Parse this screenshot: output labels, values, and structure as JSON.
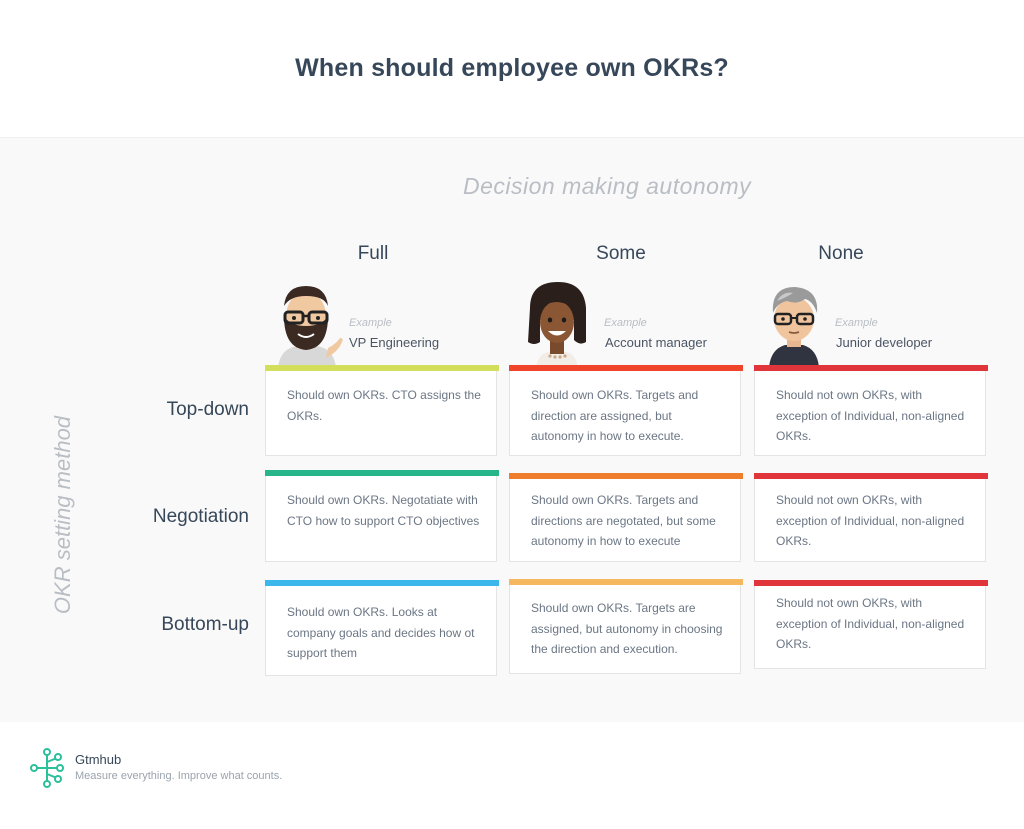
{
  "title": "When should employee own OKRs?",
  "axis_x_label": "Decision making autonomy",
  "axis_y_label": "OKR setting method",
  "columns": [
    {
      "label": "Full",
      "example_label": "Example",
      "example_role": "VP Engineering"
    },
    {
      "label": "Some",
      "example_label": "Example",
      "example_role": "Account manager"
    },
    {
      "label": "None",
      "example_label": "Example",
      "example_role": "Junior developer"
    }
  ],
  "rows": [
    {
      "label": "Top-down"
    },
    {
      "label": "Negotiation"
    },
    {
      "label": "Bottom-up"
    }
  ],
  "cells": [
    [
      {
        "text": "Should own OKRs. CTO assigns the OKRs.",
        "color": "#d3df5a"
      },
      {
        "text": "Should own OKRs. Targets and direction are assigned, but autonomy in how to execute.",
        "color": "#f0452a"
      },
      {
        "text": "Should not own OKRs, with exception of Individual, non-aligned OKRs.",
        "color": "#e0363b"
      }
    ],
    [
      {
        "text": "Should own OKRs. Negotatiate with CTO how to support CTO objectives",
        "color": "#27b58a"
      },
      {
        "text": "Should own OKRs. Targets and directions are negotated, but some autonomy in how to execute",
        "color": "#ef7e2c"
      },
      {
        "text": "Should not own OKRs, with exception of Individual, non-aligned OKRs.",
        "color": "#e0363b"
      }
    ],
    [
      {
        "text": "Should own OKRs. Looks at company goals and decides how ot support them",
        "color": "#3bb7ec"
      },
      {
        "text": "Should own OKRs. Targets are assigned, but autonomy in choosing the direction and execution.",
        "color": "#f5b85e"
      },
      {
        "text": "Should not own OKRs, with exception of Individual, non-aligned OKRs.",
        "color": "#e0363b"
      }
    ]
  ],
  "footer": {
    "brand": "Gtmhub",
    "tagline": "Measure everything. Improve what counts.",
    "logo_icon": "gtmhub-logo-icon",
    "logo_color": "#2bbf9a"
  }
}
